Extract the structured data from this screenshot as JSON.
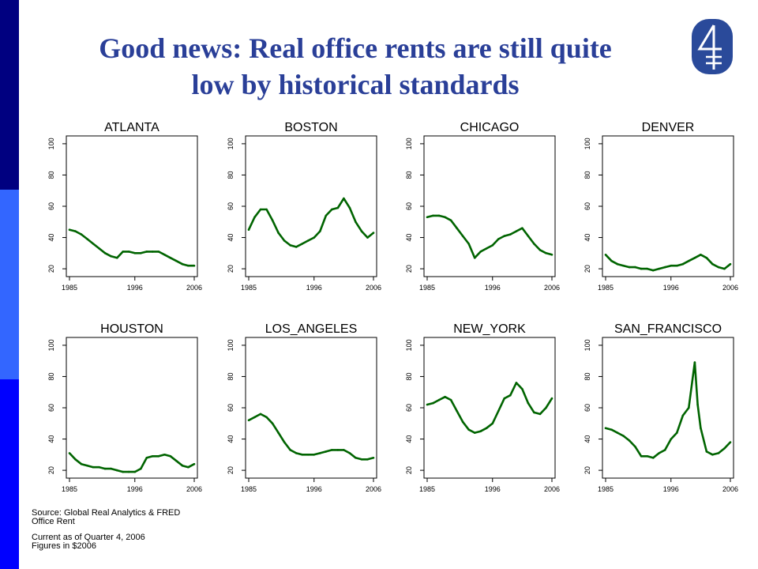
{
  "slide": {
    "title_line1": "Good news: Real office rents are still quite",
    "title_line2": "low by historical standards",
    "logo_icon": "four-logo-icon",
    "colors": {
      "title": "#2a3f98",
      "line": "#006400",
      "bar_top": "#000080",
      "bar_mid": "#3366ff",
      "bar_bottom": "#0000ff",
      "logo": "#2a4a9a"
    }
  },
  "footer": {
    "source": "Source: Global Real Analytics & FRED",
    "measure": "Office Rent",
    "current": "Current as of Quarter 4, 2006",
    "units": "Figures in $2006"
  },
  "chart_data": [
    {
      "type": "line",
      "title": "ATLANTA",
      "xlim": [
        1985,
        2006
      ],
      "ylim": [
        15,
        105
      ],
      "xticks": [
        1985,
        1996,
        2006
      ],
      "yticks": [
        20,
        40,
        60,
        80,
        100
      ],
      "x": [
        1985,
        1986,
        1987,
        1988,
        1989,
        1990,
        1991,
        1992,
        1993,
        1994,
        1995,
        1996,
        1997,
        1998,
        1999,
        2000,
        2001,
        2002,
        2003,
        2004,
        2005,
        2006
      ],
      "values": [
        45,
        44,
        42,
        39,
        36,
        33,
        30,
        28,
        27,
        31,
        31,
        30,
        30,
        31,
        31,
        31,
        29,
        27,
        25,
        23,
        22,
        22
      ]
    },
    {
      "type": "line",
      "title": "BOSTON",
      "xlim": [
        1985,
        2006
      ],
      "ylim": [
        15,
        105
      ],
      "xticks": [
        1985,
        1996,
        2006
      ],
      "yticks": [
        20,
        40,
        60,
        80,
        100
      ],
      "x": [
        1985,
        1986,
        1987,
        1988,
        1989,
        1990,
        1991,
        1992,
        1993,
        1994,
        1995,
        1996,
        1997,
        1998,
        1999,
        2000,
        2001,
        2002,
        2003,
        2004,
        2005,
        2006
      ],
      "values": [
        45,
        53,
        58,
        58,
        51,
        43,
        38,
        35,
        34,
        36,
        38,
        40,
        44,
        54,
        58,
        59,
        65,
        59,
        50,
        44,
        40,
        43
      ]
    },
    {
      "type": "line",
      "title": "CHICAGO",
      "xlim": [
        1985,
        2006
      ],
      "ylim": [
        15,
        105
      ],
      "xticks": [
        1985,
        1996,
        2006
      ],
      "yticks": [
        20,
        40,
        60,
        80,
        100
      ],
      "x": [
        1985,
        1986,
        1987,
        1988,
        1989,
        1990,
        1991,
        1992,
        1993,
        1994,
        1995,
        1996,
        1997,
        1998,
        1999,
        2000,
        2001,
        2002,
        2003,
        2004,
        2005,
        2006
      ],
      "values": [
        53,
        54,
        54,
        53,
        51,
        46,
        41,
        36,
        27,
        31,
        33,
        35,
        39,
        41,
        42,
        44,
        46,
        41,
        36,
        32,
        30,
        29
      ]
    },
    {
      "type": "line",
      "title": "DENVER",
      "xlim": [
        1985,
        2006
      ],
      "ylim": [
        15,
        105
      ],
      "xticks": [
        1985,
        1996,
        2006
      ],
      "yticks": [
        20,
        40,
        60,
        80,
        100
      ],
      "x": [
        1985,
        1986,
        1987,
        1988,
        1989,
        1990,
        1991,
        1992,
        1993,
        1994,
        1995,
        1996,
        1997,
        1998,
        1999,
        2000,
        2001,
        2002,
        2003,
        2004,
        2005,
        2006
      ],
      "values": [
        29,
        25,
        23,
        22,
        21,
        21,
        20,
        20,
        19,
        20,
        21,
        22,
        22,
        23,
        25,
        27,
        29,
        27,
        23,
        21,
        20,
        23
      ]
    },
    {
      "type": "line",
      "title": "HOUSTON",
      "xlim": [
        1985,
        2006
      ],
      "ylim": [
        15,
        105
      ],
      "xticks": [
        1985,
        1996,
        2006
      ],
      "yticks": [
        20,
        40,
        60,
        80,
        100
      ],
      "x": [
        1985,
        1986,
        1987,
        1988,
        1989,
        1990,
        1991,
        1992,
        1993,
        1994,
        1995,
        1996,
        1997,
        1998,
        1999,
        2000,
        2001,
        2002,
        2003,
        2004,
        2005,
        2006
      ],
      "values": [
        31,
        27,
        24,
        23,
        22,
        22,
        21,
        21,
        20,
        19,
        19,
        19,
        21,
        28,
        29,
        29,
        30,
        29,
        26,
        23,
        22,
        24
      ]
    },
    {
      "type": "line",
      "title": "LOS_ANGELES",
      "xlim": [
        1985,
        2006
      ],
      "ylim": [
        15,
        105
      ],
      "xticks": [
        1985,
        1996,
        2006
      ],
      "yticks": [
        20,
        40,
        60,
        80,
        100
      ],
      "x": [
        1985,
        1986,
        1987,
        1988,
        1989,
        1990,
        1991,
        1992,
        1993,
        1994,
        1995,
        1996,
        1997,
        1998,
        1999,
        2000,
        2001,
        2002,
        2003,
        2004,
        2005,
        2006
      ],
      "values": [
        52,
        54,
        56,
        54,
        50,
        44,
        38,
        33,
        31,
        30,
        30,
        30,
        31,
        32,
        33,
        33,
        33,
        31,
        28,
        27,
        27,
        28
      ]
    },
    {
      "type": "line",
      "title": "NEW_YORK",
      "xlim": [
        1985,
        2006
      ],
      "ylim": [
        15,
        105
      ],
      "xticks": [
        1985,
        1996,
        2006
      ],
      "yticks": [
        20,
        40,
        60,
        80,
        100
      ],
      "x": [
        1985,
        1986,
        1987,
        1988,
        1989,
        1990,
        1991,
        1992,
        1993,
        1994,
        1995,
        1996,
        1997,
        1998,
        1999,
        2000,
        2001,
        2002,
        2003,
        2004,
        2005,
        2006
      ],
      "values": [
        62,
        63,
        65,
        67,
        65,
        58,
        51,
        46,
        44,
        45,
        47,
        50,
        58,
        66,
        68,
        76,
        72,
        63,
        57,
        56,
        60,
        66
      ]
    },
    {
      "type": "line",
      "title": "SAN_FRANCISCO",
      "xlim": [
        1985,
        2006
      ],
      "ylim": [
        15,
        105
      ],
      "xticks": [
        1985,
        1996,
        2006
      ],
      "yticks": [
        20,
        40,
        60,
        80,
        100
      ],
      "x": [
        1985,
        1986,
        1987,
        1988,
        1989,
        1990,
        1991,
        1992,
        1993,
        1994,
        1995,
        1996,
        1997,
        1998,
        1999,
        2000,
        2000.5,
        2001,
        2002,
        2003,
        2004,
        2005,
        2006
      ],
      "values": [
        47,
        46,
        44,
        42,
        39,
        35,
        29,
        29,
        28,
        31,
        33,
        40,
        44,
        55,
        60,
        89,
        62,
        47,
        32,
        30,
        31,
        34,
        38
      ]
    }
  ]
}
